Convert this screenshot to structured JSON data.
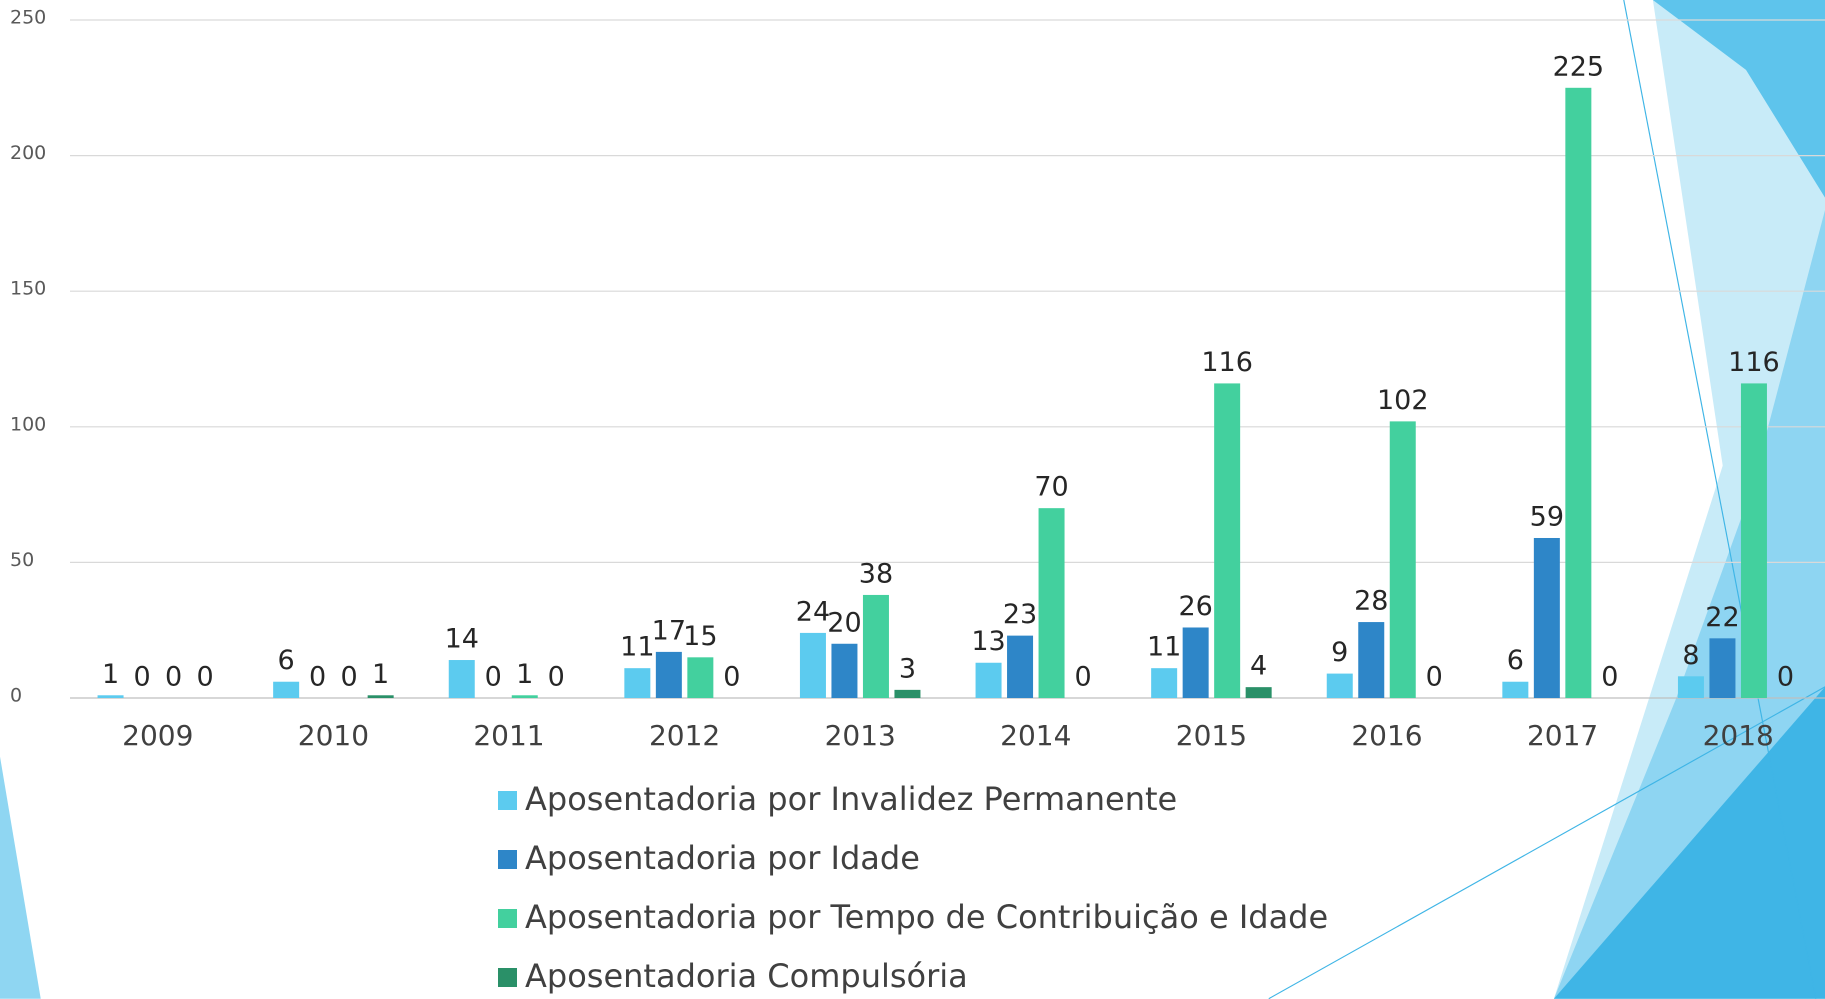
{
  "chart_data": {
    "type": "bar",
    "categories": [
      "2009",
      "2010",
      "2011",
      "2012",
      "2013",
      "2014",
      "2015",
      "2016",
      "2017",
      "2018"
    ],
    "series": [
      {
        "name": "Aposentadoria por Invalidez Permanente",
        "color": "#5ccbef",
        "values": [
          1,
          6,
          14,
          11,
          24,
          13,
          11,
          9,
          6,
          8
        ]
      },
      {
        "name": "Aposentadoria por Idade",
        "color": "#2e86c8",
        "values": [
          0,
          0,
          0,
          17,
          20,
          23,
          26,
          28,
          59,
          22
        ]
      },
      {
        "name": "Aposentadoria por Tempo de Contribuição e Idade",
        "color": "#43d09e",
        "values": [
          0,
          0,
          1,
          15,
          38,
          70,
          116,
          102,
          225,
          116
        ]
      },
      {
        "name": "Aposentadoria Compulsória",
        "color": "#2a9068",
        "values": [
          0,
          1,
          0,
          0,
          3,
          0,
          4,
          0,
          0,
          0
        ]
      }
    ],
    "ylim": [
      0,
      250
    ],
    "yticks": [
      0,
      50,
      100,
      150,
      200,
      250
    ],
    "grid": true,
    "legend": "bottom"
  }
}
